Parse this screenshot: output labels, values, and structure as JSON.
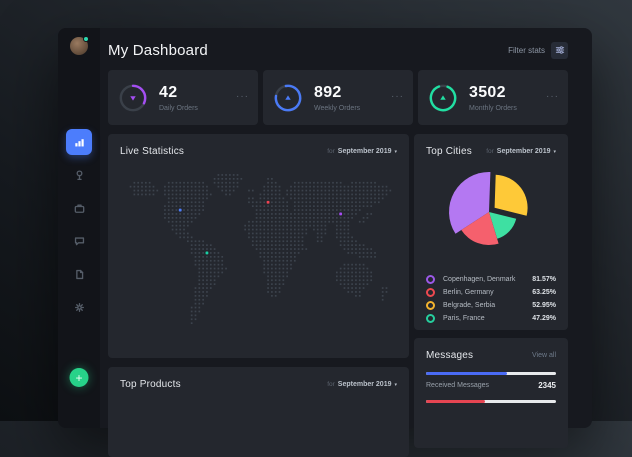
{
  "app": {
    "title": "My Dashboard"
  },
  "filter": {
    "label": "Filter stats",
    "icon": "sliders-icon"
  },
  "period": {
    "prefix": "for",
    "value": "September 2019"
  },
  "ui": {
    "more_glyph": "···",
    "caret": "▾",
    "add_glyph": "+"
  },
  "sidebar": {
    "items": [
      {
        "id": "dashboard",
        "icon": "bar-chart-icon",
        "active": true
      },
      {
        "id": "locations",
        "icon": "pin-icon",
        "active": false
      },
      {
        "id": "orders",
        "icon": "briefcase-icon",
        "active": false
      },
      {
        "id": "chat",
        "icon": "chat-icon",
        "active": false
      },
      {
        "id": "documents",
        "icon": "document-icon",
        "active": false
      },
      {
        "id": "settings",
        "icon": "gear-icon",
        "active": false
      }
    ],
    "accent_color": "#4c7dfc",
    "add_button_color": "#27d289"
  },
  "stats_cards": [
    {
      "value": "42",
      "label": "Daily Orders",
      "percent": 32,
      "start": 0,
      "trend": "down",
      "color": "#a44ef2"
    },
    {
      "value": "892",
      "label": "Weekly Orders",
      "percent": 80,
      "start": -10,
      "trend": "up",
      "color": "#4a7af6"
    },
    {
      "value": "3502",
      "label": "Monthly Orders",
      "percent": 88,
      "start": 22,
      "trend": "up",
      "color": "#21dfa2"
    }
  ],
  "live_statistics": {
    "title": "Live Statistics",
    "map": {
      "dot_color": "#3c434d",
      "markers": {
        "B": "#4d7dfb",
        "R": "#ef4352",
        "P": "#a74cf5",
        "G": "#1ad0a4"
      },
      "rows": [
        ".........................######.........................................",
        "........................########......##................................",
        "...#####....##########..#######.......###....#############..#######.....",
        "..#######..############..######......#####..##########################..",
        "...#######.############...####...##..#####.############################.",
        "...######..#############...##.......######.###########################..",
        "............###########..........##.#######.#########################...",
        "............##########...........#####R#####.#######################....",
        "...........###########............##########.#####################......",
        "...........####B######.............#########.##################.........",
        "...........##########..............######################P####..##......",
        "...........#########...............##########################..##.......",
        "............#######..............###########################..##........",
        ".............#####..............######################..####............",
        ".............####...............#################.####..####............",
        "..............####...............################..###..####............",
        "...............####..............###############...##...#####...........",
        ".................#####............##############...##....#####..........",
        "..................######..........##############.........#######........",
        "..................#######..........##############.........########......",
        "..................####G###..........###########............########.....",
        "...................########.........##########................#####.....",
        "...................########..........#########..........................",
        "...................########..........########.............######........",
        "....................########.........########............########.......",
        "....................#######..........#######............##########......",
        "....................######............######............##########......",
        "....................#####.............#####.............##########......",
        "....................#####.............#####..............########.......",
        "...................#####..............####................######....##..",
        "...................####...............####.................####.....##..",
        "...................####................##....................##.....#...",
        "...................###..............................................#...",
        "...................###..................................................",
        "..................###...................................................",
        "..................###...................................................",
        "..................##....................................................",
        "..................##....................................................",
        "..................#.....................................................",
        "........................................................................"
      ]
    }
  },
  "top_products": {
    "title": "Top Products"
  },
  "top_cities": {
    "title": "Top Cities",
    "chart_data": {
      "type": "pie",
      "unit": "%",
      "slices": [
        {
          "label": "Copenhagen, Denmark",
          "value": 81.57,
          "color": "#b478f2",
          "start": 237,
          "sweep": 125,
          "radius": 40,
          "explode": 0
        },
        {
          "label": "Belgrade, Serbia",
          "value": 52.95,
          "color": "#fec938",
          "start": 2,
          "sweep": 102,
          "radius": 33,
          "explode": 7
        },
        {
          "label": "Paris, France",
          "value": 47.29,
          "color": "#3ee0a2",
          "start": 104,
          "sweep": 59,
          "radius": 28,
          "explode": 0
        },
        {
          "label": "Berlin, Germany",
          "value": 63.25,
          "color": "#f5606d",
          "start": 163,
          "sweep": 74,
          "radius": 33,
          "explode": 0
        }
      ]
    },
    "legend": [
      {
        "label": "Copenhagen, Denmark",
        "value": "81.57%",
        "color": "#9c59e8"
      },
      {
        "label": "Berlin, Germany",
        "value": "63.25%",
        "color": "#ed4950"
      },
      {
        "label": "Belgrade, Serbia",
        "value": "52.95%",
        "color": "#f3b32e"
      },
      {
        "label": "Paris, France",
        "value": "47.29%",
        "color": "#26cf9e"
      }
    ]
  },
  "messages": {
    "title": "Messages",
    "view_all": "View all",
    "bars": [
      {
        "color": "#4a6bf5",
        "percent": 62
      },
      {
        "color": "#e64552",
        "percent": 45
      }
    ],
    "rows": [
      {
        "label": "Received Messages",
        "value": "2345"
      }
    ]
  }
}
